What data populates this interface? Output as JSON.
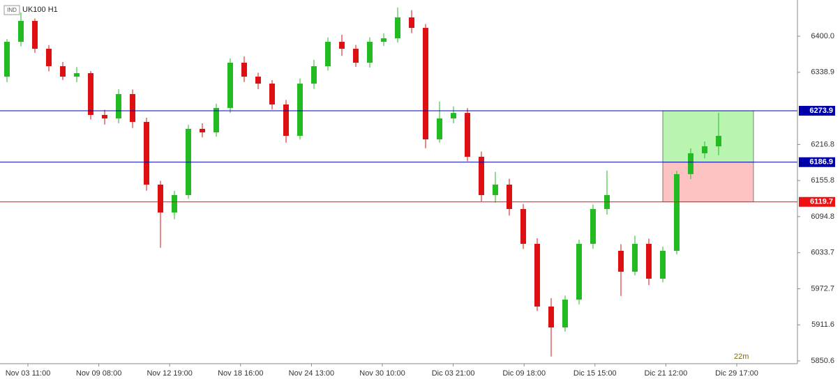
{
  "chart_data": {
    "type": "candlestick",
    "badge": "IND",
    "title": "UK100 H1",
    "countdown": "22m",
    "up_color": "#22bb22",
    "down_color": "#dd1111",
    "ylim": [
      5845.9,
      6461.3
    ],
    "yticks": [
      {
        "value": 6400,
        "label": "6400.0"
      },
      6338.9,
      6216.8,
      6155.8,
      6094.8,
      6033.7,
      5972.7,
      5911.6,
      5850.6
    ],
    "x_labels": [
      "Nov 03 11:00",
      "Nov 09 08:00",
      "Nov 12 19:00",
      "Nov 18 16:00",
      "Nov 24 13:00",
      "Nov 30 10:00",
      "Dic 03 21:00",
      "Dic 09 18:00",
      "Dic 15 15:00",
      "Dic 21 12:00",
      "Dic 29 17:00"
    ],
    "levels": [
      {
        "value": 6273.9,
        "color": "#0000aa"
      },
      {
        "value": 6186.9,
        "color": "#0000aa"
      },
      {
        "value": 6119.7,
        "color": "#ee1111"
      }
    ],
    "open": [
      6331.6,
      6390.6,
      6425.9,
      6378.8,
      6349.3,
      6331.6,
      6337.5,
      6266.8,
      6260.9,
      6302.1,
      6255.0,
      6148.9,
      6101.7,
      6131.2,
      6243.2,
      6237.3,
      6278.6,
      6355.2,
      6331.6,
      6319.8,
      6284.5,
      6231.4,
      6319.8,
      6349.3,
      6390.6,
      6378.8,
      6355.2,
      6390.6,
      6396.5,
      6431.8,
      6414.1,
      6225.5,
      6260.9,
      6270.2,
      6196.0,
      6131.2,
      6148.9,
      6107.6,
      6048.7,
      5942.6,
      5907.2,
      5954.3,
      6048.7,
      6107.6,
      6036.9,
      6001.5,
      6048.7,
      5989.7,
      6036.9,
      6166.6,
      6201.9,
      6213.7
    ],
    "high": [
      6395.2,
      6440.3,
      6430.1,
      6385.0,
      6356.4,
      6347.9,
      6341.2,
      6275.5,
      6310.6,
      6309.8,
      6262.0,
      6155.3,
      6138.4,
      6250.1,
      6252.6,
      6285.9,
      6362.7,
      6366.0,
      6338.2,
      6325.7,
      6292.3,
      6328.4,
      6360.1,
      6398.0,
      6402.5,
      6385.3,
      6398.1,
      6405.0,
      6448.6,
      6444.0,
      6420.7,
      6289.5,
      6281.2,
      6278.4,
      6204.9,
      6170.6,
      6158.7,
      6116.0,
      6058.3,
      5956.8,
      5961.3,
      6055.9,
      6115.2,
      6172.8,
      6048.1,
      6062.5,
      6057.3,
      6044.0,
      6172.3,
      6210.4,
      6221.8,
      6270.1
    ],
    "low": [
      6322.4,
      6383.1,
      6372.0,
      6340.6,
      6325.8,
      6322.0,
      6259.3,
      6250.4,
      6252.7,
      6244.6,
      6138.5,
      6042.1,
      6090.2,
      6124.8,
      6228.9,
      6230.0,
      6270.3,
      6322.5,
      6310.4,
      6276.1,
      6219.8,
      6225.0,
      6311.0,
      6341.9,
      6366.7,
      6348.2,
      6346.9,
      6383.7,
      6389.2,
      6405.3,
      6210.3,
      6219.8,
      6252.6,
      6188.4,
      6120.5,
      6118.3,
      6096.5,
      6040.2,
      5935.0,
      5858.0,
      5900.1,
      5946.2,
      6040.3,
      6098.0,
      5960.4,
      5995.2,
      5978.9,
      5983.5,
      6030.8,
      6158.2,
      6193.4,
      6198.6
    ],
    "close": [
      6390.6,
      6425.9,
      6378.8,
      6349.3,
      6331.6,
      6337.5,
      6266.8,
      6260.9,
      6302.1,
      6255.0,
      6148.9,
      6101.7,
      6131.2,
      6243.2,
      6237.3,
      6278.6,
      6355.2,
      6331.6,
      6319.8,
      6284.5,
      6231.4,
      6319.8,
      6349.3,
      6390.6,
      6378.8,
      6355.2,
      6390.6,
      6396.5,
      6431.8,
      6414.1,
      6225.5,
      6260.9,
      6270.2,
      6196.0,
      6131.2,
      6148.9,
      6107.6,
      6048.7,
      5942.6,
      5907.2,
      5954.3,
      6048.7,
      6107.6,
      6131.2,
      6001.5,
      6048.7,
      5989.7,
      6036.9,
      6166.6,
      6201.9,
      6213.7,
      6231.4
    ]
  }
}
